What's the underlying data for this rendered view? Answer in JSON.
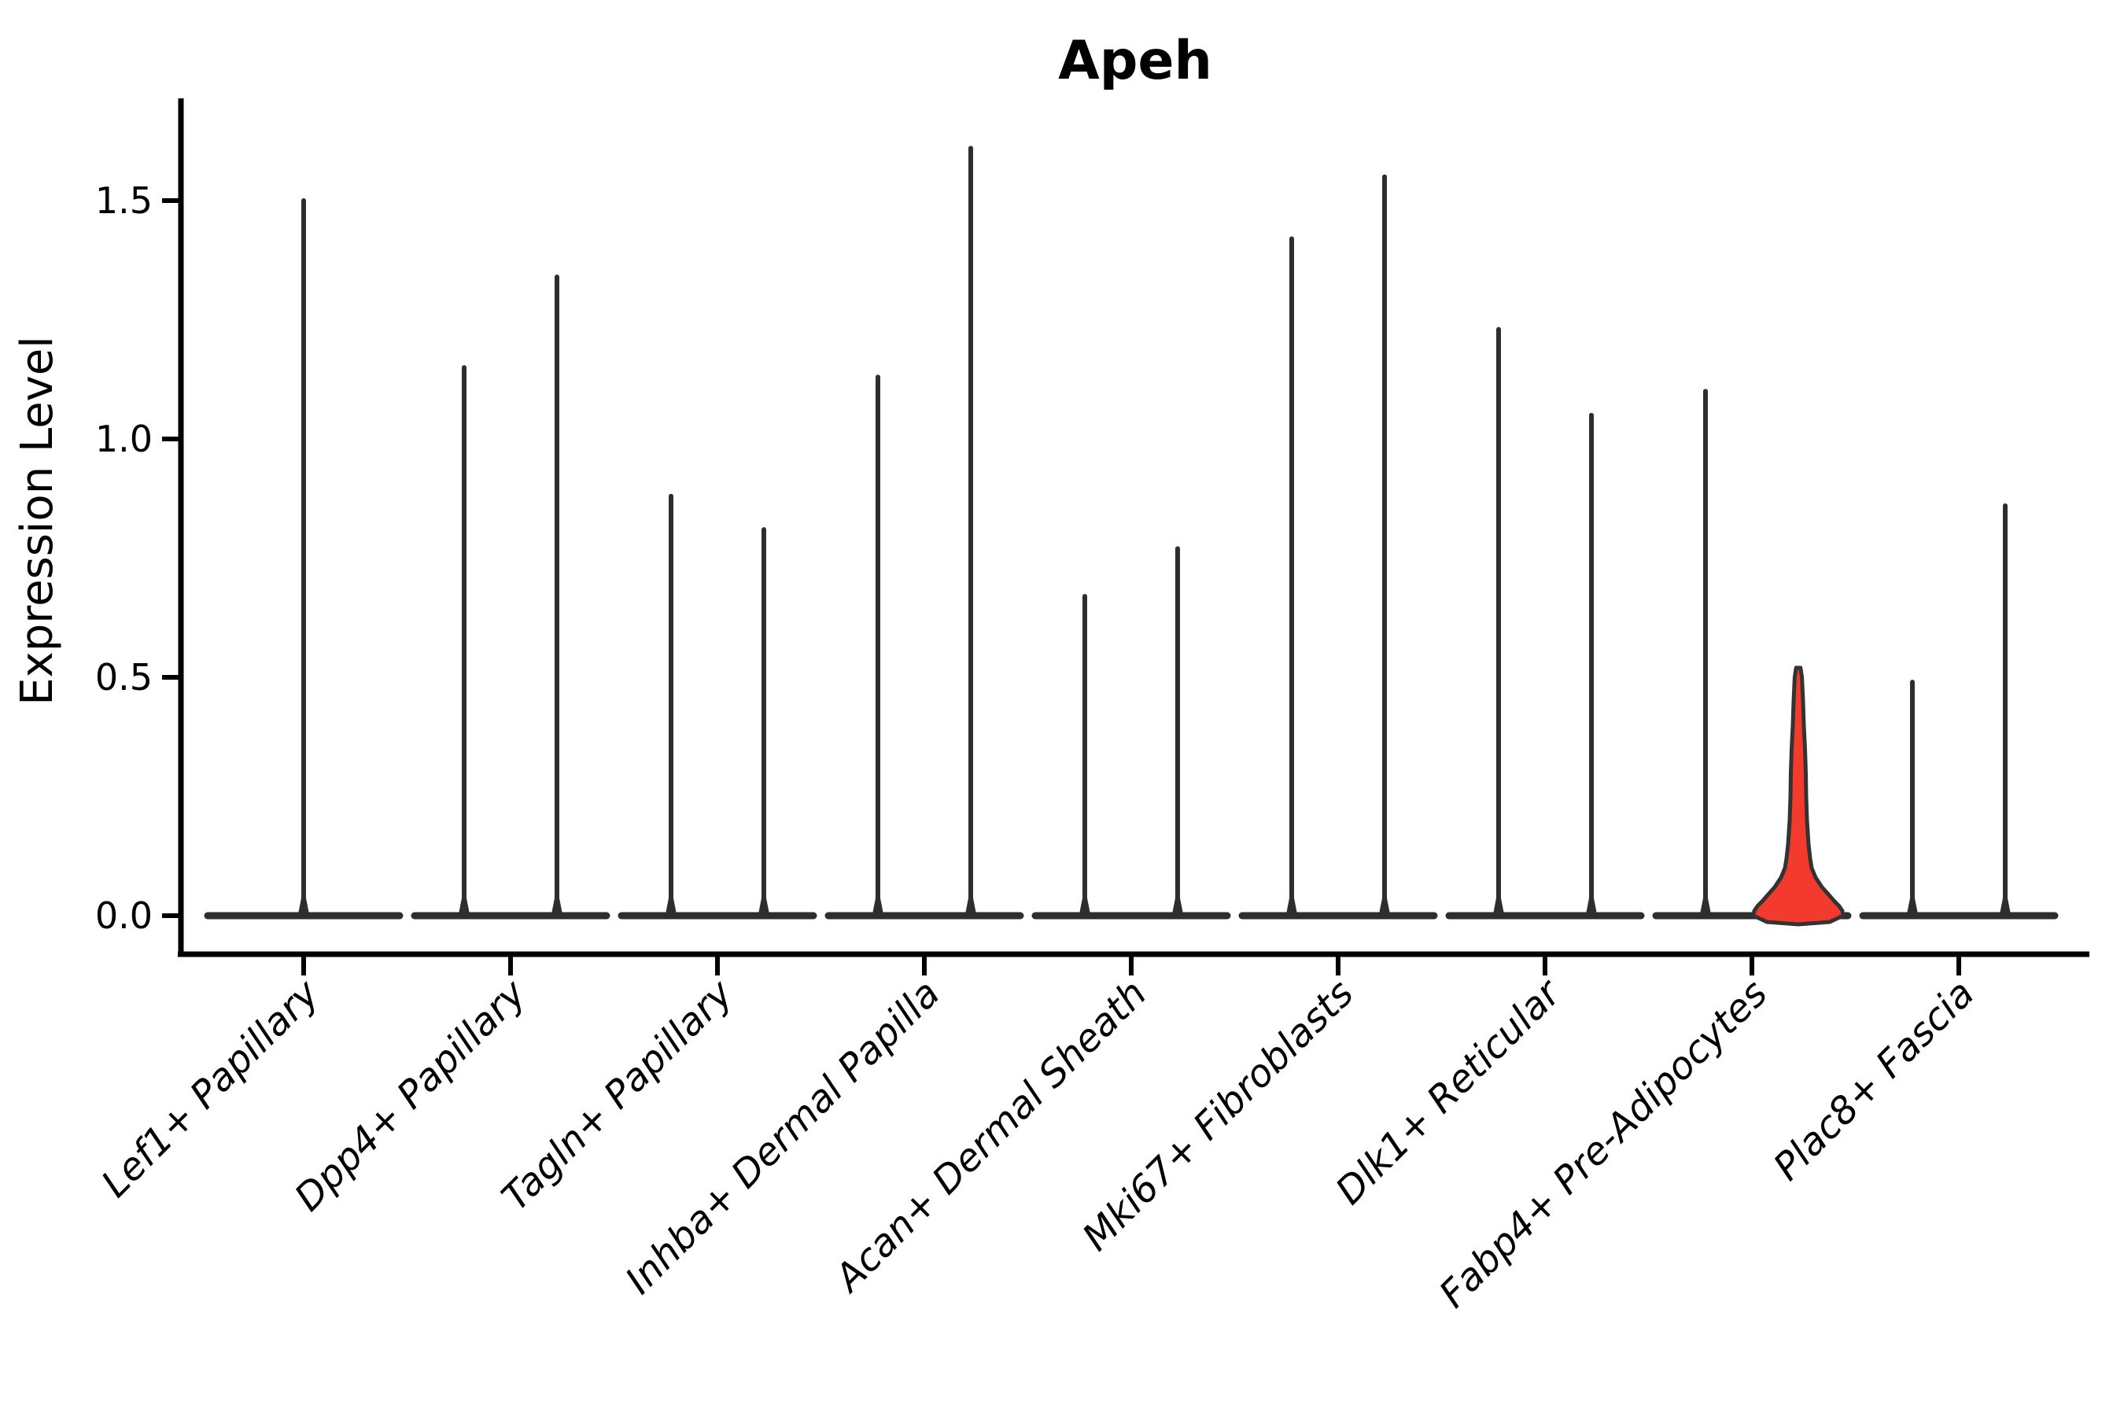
{
  "title": "Apeh",
  "y_axis": {
    "label": "Expression Level",
    "tick_labels": [
      "0.0",
      "0.5",
      "1.0",
      "1.5"
    ],
    "tick_values": [
      0.0,
      0.5,
      1.0,
      1.5
    ]
  },
  "colors": {
    "background": "#ffffff",
    "axis": "#000000",
    "violin_stroke": "#2e2e2e",
    "highlight_fill": "#f23a2d",
    "highlight_stroke": "#333333"
  },
  "chart_data": {
    "type": "violin",
    "title": "Apeh",
    "xlabel": "",
    "ylabel": "Expression Level",
    "ylim": [
      0,
      1.7
    ],
    "yticks": [
      0.0,
      0.5,
      1.0,
      1.5
    ],
    "ytick_labels": [
      "0.0",
      "0.5",
      "1.0",
      "1.5"
    ],
    "grid": false,
    "legend": "none",
    "categories": [
      "Lef1+ Papillary",
      "Dpp4+ Papillary",
      "Tagln+ Papillary",
      "Inhba+ Dermal Papilla",
      "Acan+ Dermal Sheath",
      "Mki67+ Fibroblasts",
      "Dlk1+ Reticular",
      "Fabp4+ Pre-Adipocytes",
      "Plac8+ Fascia"
    ],
    "series": [
      {
        "category": "Lef1+ Papillary",
        "violins": [
          {
            "max": 1.5,
            "offset": 0
          }
        ]
      },
      {
        "category": "Dpp4+ Papillary",
        "violins": [
          {
            "max": 1.15,
            "offset": -1
          },
          {
            "max": 1.34,
            "offset": 1
          }
        ]
      },
      {
        "category": "Tagln+ Papillary",
        "violins": [
          {
            "max": 0.88,
            "offset": -1
          },
          {
            "max": 0.81,
            "offset": 1
          }
        ]
      },
      {
        "category": "Inhba+ Dermal Papilla",
        "violins": [
          {
            "max": 1.13,
            "offset": -1
          },
          {
            "max": 1.61,
            "offset": 1
          }
        ]
      },
      {
        "category": "Acan+ Dermal Sheath",
        "violins": [
          {
            "max": 0.67,
            "offset": -1
          },
          {
            "max": 0.77,
            "offset": 1
          }
        ]
      },
      {
        "category": "Mki67+ Fibroblasts",
        "violins": [
          {
            "max": 1.42,
            "offset": -1
          },
          {
            "max": 1.55,
            "offset": 1
          }
        ]
      },
      {
        "category": "Dlk1+ Reticular",
        "violins": [
          {
            "max": 1.23,
            "offset": -1
          },
          {
            "max": 1.05,
            "offset": 1
          }
        ]
      },
      {
        "category": "Fabp4+ Pre-Adipocytes",
        "violins": [
          {
            "max": 1.1,
            "offset": -1
          },
          {
            "max": 0.52,
            "offset": 1,
            "highlight": true,
            "profile": [
              [
                0.52,
                0.05
              ],
              [
                0.5,
                0.08
              ],
              [
                0.45,
                0.105
              ],
              [
                0.4,
                0.123
              ],
              [
                0.35,
                0.149
              ],
              [
                0.3,
                0.167
              ],
              [
                0.25,
                0.175
              ],
              [
                0.2,
                0.193
              ],
              [
                0.15,
                0.228
              ],
              [
                0.12,
                0.263
              ],
              [
                0.1,
                0.298
              ],
              [
                0.08,
                0.386
              ],
              [
                0.06,
                0.526
              ],
              [
                0.045,
                0.667
              ],
              [
                0.03,
                0.807
              ],
              [
                0.02,
                0.912
              ],
              [
                0.01,
                0.982
              ],
              [
                0.0,
                1.0
              ]
            ]
          }
        ]
      },
      {
        "category": "Plac8+ Fascia",
        "violins": [
          {
            "max": 0.49,
            "offset": -1
          },
          {
            "max": 0.86,
            "offset": 1
          }
        ]
      }
    ]
  }
}
